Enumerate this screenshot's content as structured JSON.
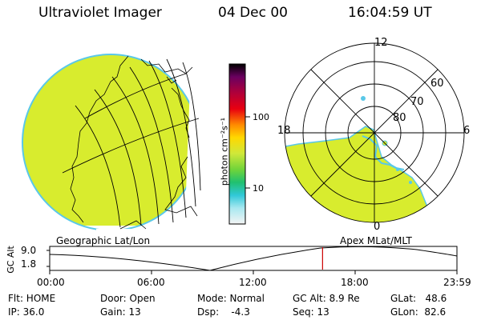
{
  "header": {
    "title": "Ultraviolet Imager",
    "date": "04 Dec 00",
    "time": "16:04:59 UT"
  },
  "colorbar": {
    "unit_label": "photon cm⁻²s⁻¹",
    "tick_100": "100",
    "tick_10": "10"
  },
  "geo_map": {
    "label": "Geographic Lat/Lon"
  },
  "polar_plot": {
    "label": "Apex MLat/MLT",
    "mlt_12": "12",
    "mlt_18": "18",
    "mlt_6": "6",
    "mlt_0": "0",
    "lat_60": "60",
    "lat_70": "70",
    "lat_80": "80"
  },
  "altitude_plot": {
    "ylabel": "GC Alt",
    "y_top": "9.0",
    "y_bottom": "1.8",
    "x_ticks": [
      "00:00",
      "06:00",
      "12:00",
      "18:00",
      "23:59"
    ],
    "current_time_fraction": 0.67
  },
  "status": {
    "flt": "Flt: HOME",
    "ip": "IP: 36.0",
    "door": "Door: Open",
    "gain": "Gain: 13",
    "mode": "Mode: Normal",
    "dsp": "Dsp:    -4.3",
    "gc_alt": "GC Alt: 8.9 Re",
    "seq": "Seq: 13",
    "glat": "GLat:   48.6",
    "glon": "GLon:  82.6"
  },
  "colors": {
    "emission": "#d8ec2e",
    "emission_edge": "#5ac8e8",
    "marker": "#cc0000",
    "line": "#000000"
  }
}
